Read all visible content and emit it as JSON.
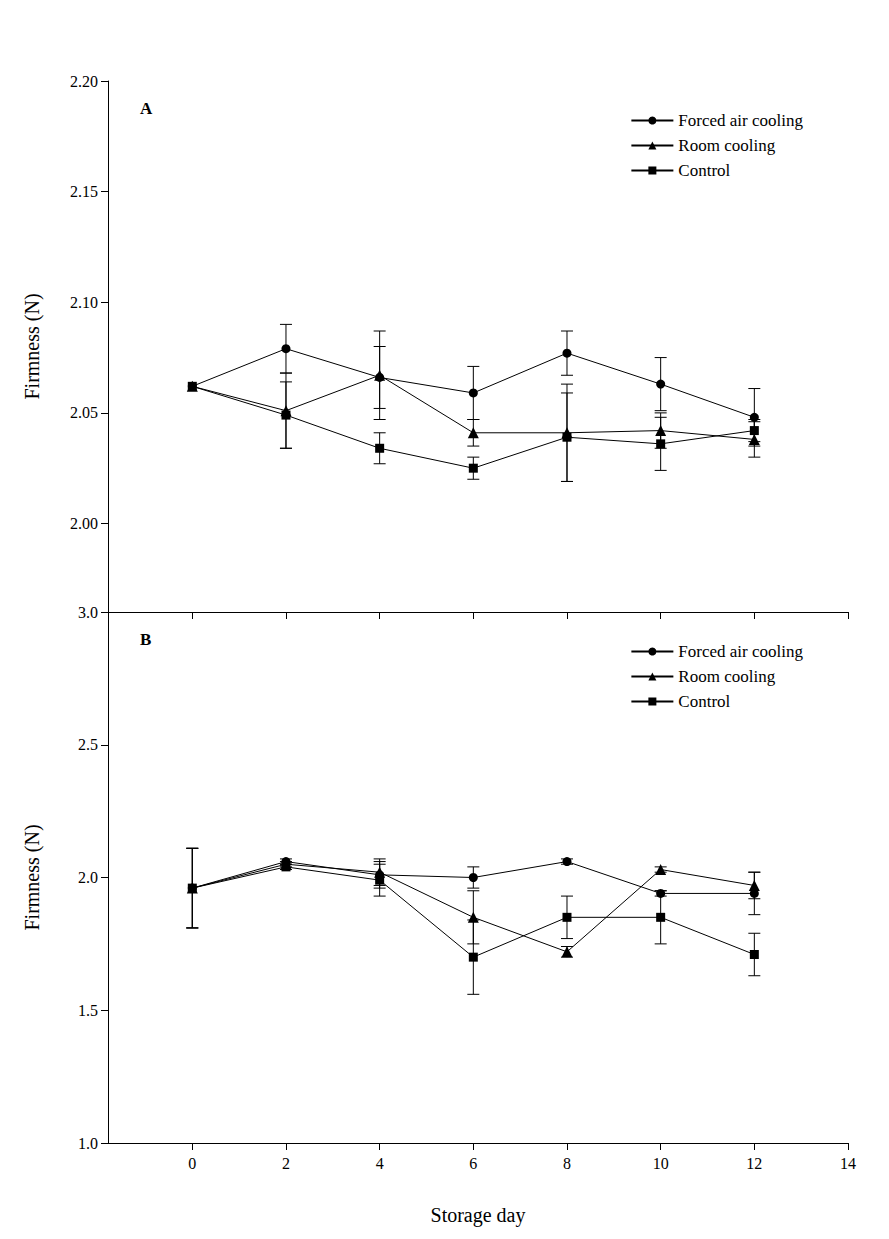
{
  "chart_data": [
    {
      "type": "line",
      "title": "A",
      "x": [
        0,
        2,
        4,
        6,
        8,
        10,
        12
      ],
      "xlim": [
        -1.8,
        14
      ],
      "xticks": [
        0,
        2,
        4,
        6,
        8,
        10,
        12,
        14
      ],
      "ylim": [
        1.96,
        2.2
      ],
      "yticks": [
        {
          "value": 2,
          "label": "2.00"
        },
        2.05,
        {
          "value": 2.1,
          "label": "2.10"
        },
        2.15,
        {
          "value": 2.2,
          "label": "2.20"
        }
      ],
      "y_label": "Firmness (N)",
      "tick_labels": "y",
      "grid": false,
      "legend": "upper right",
      "series": [
        {
          "name": "Forced air cooling",
          "color": "#000000",
          "marker": "circle",
          "values": [
            2.062,
            2.079,
            2.066,
            2.059,
            2.077,
            2.063,
            2.048
          ],
          "errors": [
            0,
            0.011,
            0.014,
            0.012,
            0.01,
            0.012,
            0.013
          ]
        },
        {
          "name": "Room cooling",
          "color": "#000000",
          "marker": "triangle",
          "values": [
            2.062,
            2.051,
            2.067,
            2.041,
            2.041,
            2.042,
            2.038
          ],
          "errors": [
            0,
            0.017,
            0.02,
            0.006,
            0.022,
            0.008,
            0.008
          ]
        },
        {
          "name": "Control",
          "color": "#000000",
          "marker": "square",
          "values": [
            2.062,
            2.049,
            2.034,
            2.025,
            2.039,
            2.036,
            2.042
          ],
          "errors": [
            0,
            0.015,
            0.007,
            0.005,
            0.02,
            0.012,
            0.005
          ]
        }
      ]
    },
    {
      "type": "line",
      "title": "B",
      "x": [
        0,
        2,
        4,
        6,
        8,
        10,
        12
      ],
      "xlim": [
        -1.8,
        14
      ],
      "xticks": [
        0,
        2,
        4,
        6,
        8,
        10,
        12,
        14
      ],
      "ylim": [
        1.0,
        3.0
      ],
      "yticks": [
        {
          "value": 1,
          "label": "1.0"
        },
        1.5,
        {
          "value": 2,
          "label": "2.0"
        },
        2.5,
        {
          "value": 3,
          "label": "3.0"
        }
      ],
      "x_label": "Storage day",
      "y_label": "Firmness (N)",
      "grid": false,
      "legend": "upper right",
      "series": [
        {
          "name": "Forced air cooling",
          "color": "#000000",
          "marker": "circle",
          "values": [
            1.96,
            2.06,
            2.01,
            2.0,
            2.06,
            1.94,
            1.94
          ],
          "errors": [
            0.15,
            0.01,
            0.05,
            0.04,
            0.01,
            0.01,
            0.08
          ]
        },
        {
          "name": "Room cooling",
          "color": "#000000",
          "marker": "triangle",
          "values": [
            1.96,
            2.05,
            2.02,
            1.85,
            1.72,
            2.03,
            1.97
          ],
          "errors": [
            0.15,
            0.01,
            0.05,
            0.1,
            0.02,
            0.01,
            0.05
          ]
        },
        {
          "name": "Control",
          "color": "#000000",
          "marker": "square",
          "values": [
            1.96,
            2.04,
            1.99,
            1.7,
            1.85,
            1.85,
            1.71
          ],
          "errors": [
            0.15,
            0.01,
            0.06,
            0.14,
            0.08,
            0.1,
            0.08
          ]
        }
      ]
    }
  ]
}
